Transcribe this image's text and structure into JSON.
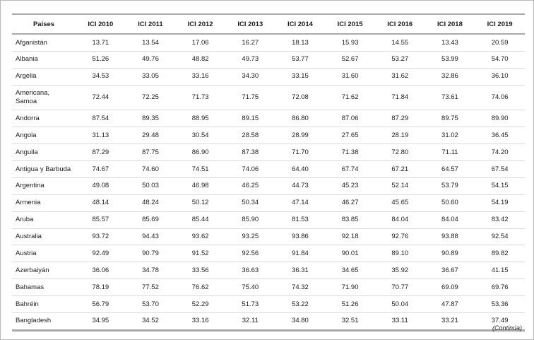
{
  "table": {
    "columns": [
      "Países",
      "ICI 2010",
      "ICI 2011",
      "ICI 2012",
      "ICI 2013",
      "ICI 2014",
      "ICI 2015",
      "ICI 2016",
      "ICI 2018",
      "ICI 2019"
    ],
    "rows": [
      {
        "country": "Afganistán",
        "values": [
          "13.71",
          "13.54",
          "17.06",
          "16.27",
          "18.13",
          "15.93",
          "14.55",
          "13.43",
          "20.59"
        ]
      },
      {
        "country": "Albania",
        "values": [
          "51.26",
          "49.76",
          "48.82",
          "49.73",
          "53.77",
          "52.67",
          "53.27",
          "53.99",
          "54.70"
        ]
      },
      {
        "country": "Argelia",
        "values": [
          "34.53",
          "33.05",
          "33.16",
          "34.30",
          "33.15",
          "31.60",
          "31.62",
          "32.86",
          "36.10"
        ]
      },
      {
        "country": "Americana, Samoa",
        "values": [
          "72.44",
          "72.25",
          "71.73",
          "71.75",
          "72.08",
          "71.62",
          "71.84",
          "73.61",
          "74.06"
        ]
      },
      {
        "country": "Andorra",
        "values": [
          "87.54",
          "89.35",
          "88.95",
          "89.15",
          "86.80",
          "87.06",
          "87.29",
          "89.75",
          "89.90"
        ]
      },
      {
        "country": "Angola",
        "values": [
          "31.13",
          "29.48",
          "30.54",
          "28.58",
          "28.99",
          "27.65",
          "28.19",
          "31.02",
          "36.45"
        ]
      },
      {
        "country": "Anguila",
        "values": [
          "87.29",
          "87.75",
          "86.90",
          "87.38",
          "71.70",
          "71.38",
          "72.80",
          "71.11",
          "74.20"
        ]
      },
      {
        "country": "Antigua y Barbuda",
        "values": [
          "74.67",
          "74.60",
          "74.51",
          "74.06",
          "64.40",
          "67.74",
          "67.21",
          "64.57",
          "67.54"
        ]
      },
      {
        "country": "Argentina",
        "values": [
          "49.08",
          "50.03",
          "46.98",
          "46.25",
          "44.73",
          "45.23",
          "52.14",
          "53.79",
          "54.15"
        ]
      },
      {
        "country": "Armenia",
        "values": [
          "48.14",
          "48.24",
          "50.12",
          "50.34",
          "47.14",
          "46.27",
          "45.65",
          "50.60",
          "54.19"
        ]
      },
      {
        "country": "Aruba",
        "values": [
          "85.57",
          "85.69",
          "85.44",
          "85.90",
          "81.53",
          "83.85",
          "84.04",
          "84.04",
          "83.42"
        ]
      },
      {
        "country": "Australia",
        "values": [
          "93.72",
          "94.43",
          "93.62",
          "93.25",
          "93.86",
          "92.18",
          "92.76",
          "93.88",
          "92.54"
        ]
      },
      {
        "country": "Austria",
        "values": [
          "92.49",
          "90.79",
          "91.52",
          "92.56",
          "91.84",
          "90.01",
          "89.10",
          "90.89",
          "89.82"
        ]
      },
      {
        "country": "Azerbaiyán",
        "values": [
          "36.06",
          "34.78",
          "33.56",
          "36.63",
          "36.31",
          "34.65",
          "35.92",
          "36.67",
          "41.15"
        ]
      },
      {
        "country": "Bahamas",
        "values": [
          "78.19",
          "77.52",
          "76.62",
          "75.40",
          "74.32",
          "71.90",
          "70.77",
          "69.09",
          "69.76"
        ]
      },
      {
        "country": "Bahréin",
        "values": [
          "56.79",
          "53.70",
          "52.29",
          "51.73",
          "53.22",
          "51.26",
          "50.04",
          "47.87",
          "53.36"
        ]
      },
      {
        "country": "Bangladesh",
        "values": [
          "34.95",
          "34.52",
          "33.16",
          "32.11",
          "34.80",
          "32.51",
          "33.11",
          "33.21",
          "37.49"
        ]
      }
    ]
  },
  "footer": {
    "continua": "(Continúa)"
  },
  "colors": {
    "text": "#1a1a1a",
    "heavy_rule": "#a9a9a9",
    "light_rule": "#d9d9d9",
    "frame": "#b8b8b8",
    "background": "#ffffff"
  }
}
